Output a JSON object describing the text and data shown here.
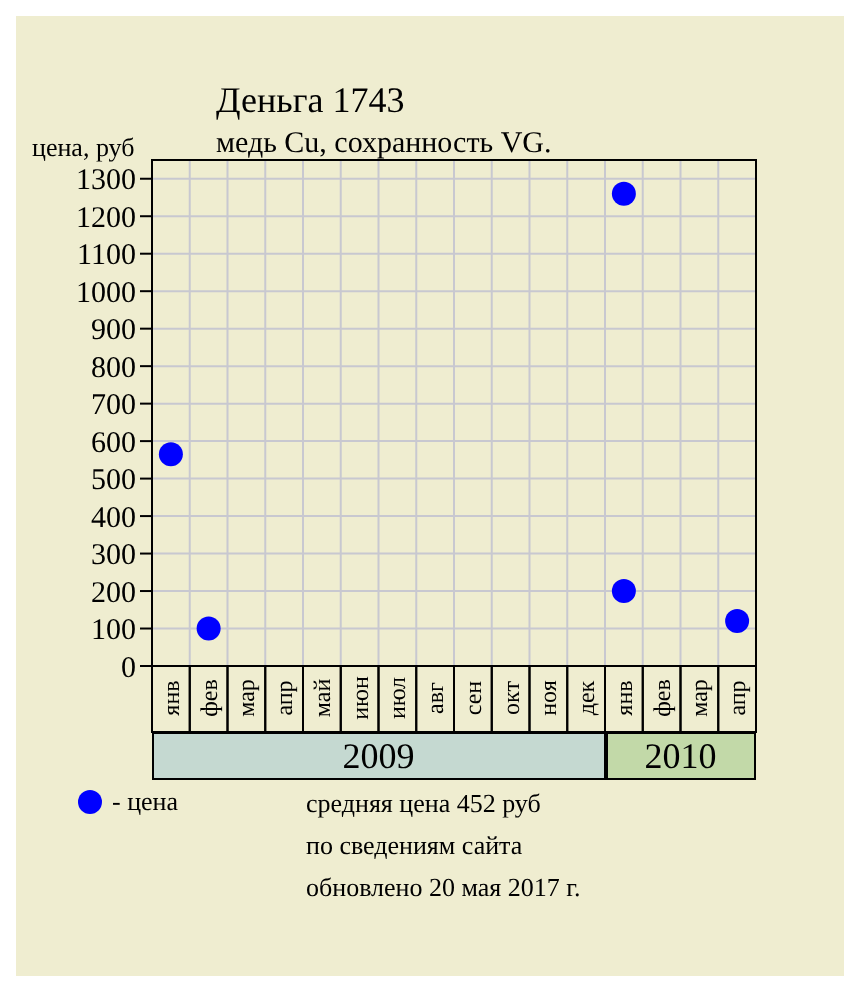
{
  "chart_data": {
    "type": "scatter",
    "title": "Деньга 1743",
    "subtitle": "медь Cu, сохранность VG.",
    "ylabel": "цена, руб",
    "categories": [
      "янв",
      "фев",
      "мар",
      "апр",
      "май",
      "июн",
      "июл",
      "авг",
      "сен",
      "окт",
      "ноя",
      "дек",
      "янв",
      "фев",
      "мар",
      "апр"
    ],
    "series": [
      {
        "name": "- цена",
        "color": "#0000ff",
        "values": [
          565,
          100,
          null,
          null,
          null,
          null,
          null,
          null,
          null,
          null,
          null,
          null,
          1260,
          null,
          null,
          120
        ]
      },
      {
        "color": "#0000ff",
        "values": [
          null,
          null,
          null,
          null,
          null,
          null,
          null,
          null,
          null,
          null,
          null,
          null,
          200,
          null,
          null,
          null
        ]
      }
    ],
    "ylim": [
      0,
      1350
    ],
    "yticks": [
      0,
      100,
      200,
      300,
      400,
      500,
      600,
      700,
      800,
      900,
      1000,
      1100,
      1200,
      1300
    ],
    "grid": true,
    "marker": "circle",
    "legend": "bottom left",
    "annotations": [
      "2009",
      "2010",
      "средняя цена 452 руб",
      "по сведениям сайта",
      "обновлено 20 мая 2017 г."
    ]
  }
}
